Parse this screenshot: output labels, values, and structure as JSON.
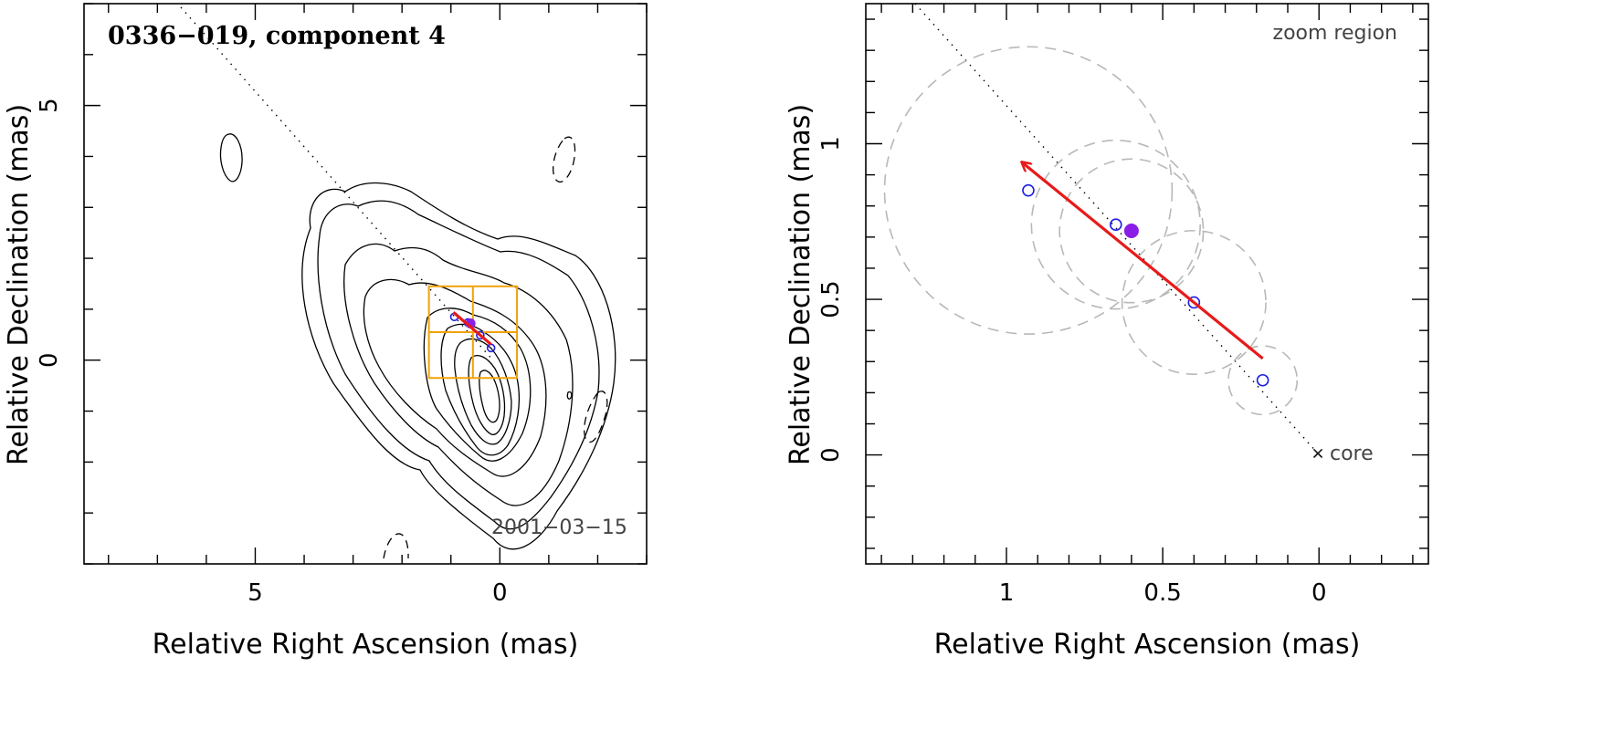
{
  "chart_data": [
    {
      "type": "contour",
      "title": "0336−019, component 4",
      "epoch": "2001−03−15",
      "xlabel": "Relative Right Ascension (mas)",
      "ylabel": "Relative Declination (mas)",
      "xlim": [
        8.5,
        -3.0
      ],
      "ylim": [
        -4.0,
        7.0
      ],
      "xticks_major": [
        5,
        0
      ],
      "xtick_labels": [
        "5",
        "0"
      ],
      "yticks_major": [
        5,
        0
      ],
      "ytick_labels": [
        "5",
        "0"
      ],
      "zoom_box": {
        "ra": [
          1.45,
          -0.35
        ],
        "dec": [
          -0.35,
          1.45
        ]
      },
      "components": [
        {
          "ra": 0.93,
          "dec": 0.85,
          "filled": false
        },
        {
          "ra": 0.65,
          "dec": 0.74,
          "filled": false
        },
        {
          "ra": 0.4,
          "dec": 0.49,
          "filled": false
        },
        {
          "ra": 0.18,
          "dec": 0.24,
          "filled": false
        },
        {
          "ra": 0.6,
          "dec": 0.72,
          "filled": true
        }
      ],
      "velocity_arrow": {
        "from": [
          0.18,
          0.31
        ],
        "to": [
          0.95,
          0.94
        ]
      }
    },
    {
      "type": "scatter",
      "title": "zoom region",
      "xlabel": "Relative Right Ascension (mas)",
      "ylabel": "Relative Declination (mas)",
      "xlim": [
        1.45,
        -0.35
      ],
      "ylim": [
        -0.35,
        1.45
      ],
      "xticks_major": [
        1,
        0.5,
        0
      ],
      "xtick_labels": [
        "1",
        "0.5",
        "0"
      ],
      "yticks_major": [
        1,
        0.5,
        0
      ],
      "ytick_labels": [
        "1",
        "0.5",
        "0"
      ],
      "core_label": "core",
      "components": [
        {
          "ra": 0.93,
          "dec": 0.85,
          "err_radius": 0.46,
          "filled": false
        },
        {
          "ra": 0.65,
          "dec": 0.74,
          "err_radius": 0.27,
          "filled": false
        },
        {
          "ra": 0.4,
          "dec": 0.49,
          "err_radius": 0.23,
          "filled": false
        },
        {
          "ra": 0.18,
          "dec": 0.24,
          "err_radius": 0.11,
          "filled": false
        },
        {
          "ra": 0.6,
          "dec": 0.72,
          "err_radius": 0.23,
          "filled": true
        }
      ],
      "velocity_arrow": {
        "from": [
          0.18,
          0.31
        ],
        "to": [
          0.95,
          0.94
        ]
      }
    }
  ]
}
